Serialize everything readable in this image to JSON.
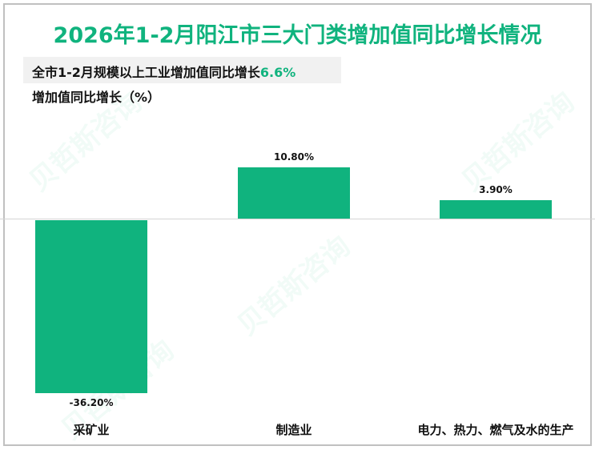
{
  "title": "2026年1-2月阳江市三大门类增加值同比增长情况",
  "subtitle": {
    "text": "全市1-2月规模以上工业增加值同比增长",
    "value": "6.6%"
  },
  "ylabel": "增加值同比增长（%）",
  "watermark": "贝哲斯咨询",
  "colors": {
    "bar": "#10b37e",
    "title": "#10b37e"
  },
  "chart_data": {
    "type": "bar",
    "title": "2026年1-2月阳江市三大门类增加值同比增长情况",
    "subtitle": "全市1-2月规模以上工业增加值同比增长6.6%",
    "xlabel": "",
    "ylabel": "增加值同比增长（%）",
    "categories": [
      "采矿业",
      "制造业",
      "电力、热力、燃气及水的生产"
    ],
    "values": [
      -36.2,
      10.8,
      3.9
    ],
    "value_labels": [
      "-36.20%",
      "10.80%",
      "3.90%"
    ],
    "grid": false,
    "legend": "none"
  }
}
